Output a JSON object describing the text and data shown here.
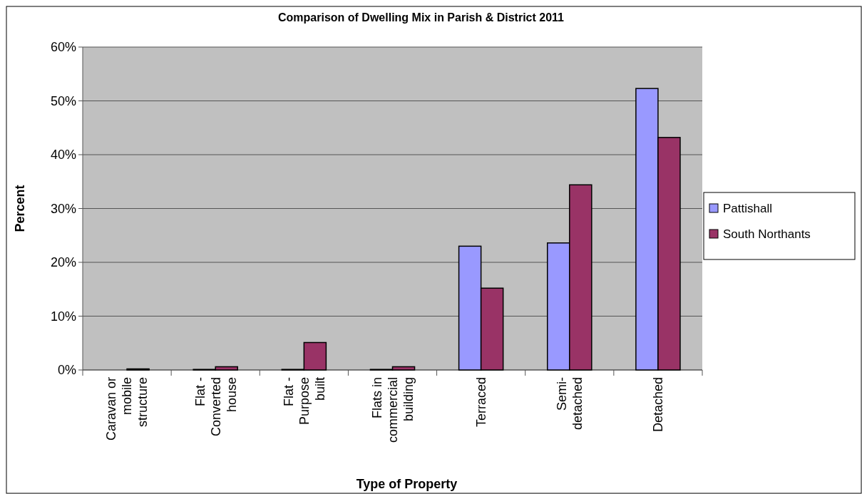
{
  "chart_data": {
    "type": "bar",
    "title": "Comparison of Dwelling Mix in Parish & District 2011",
    "xlabel": "Type of Property",
    "ylabel": "Percent",
    "categories": [
      "Caravan or mobile structure",
      "Flat - Converted house",
      "Flat - Purpose built",
      "Flats in commercial building",
      "Terraced",
      "Semi-detached",
      "Detached"
    ],
    "series": [
      {
        "name": "Pattishall",
        "color": "#9999ff",
        "values": [
          0,
          0.1,
          0.1,
          0.1,
          23.0,
          23.6,
          52.3
        ]
      },
      {
        "name": "South Northants",
        "color": "#993366",
        "values": [
          0.2,
          0.6,
          5.1,
          0.6,
          15.2,
          34.4,
          43.2
        ]
      }
    ],
    "ylim": [
      0,
      60
    ],
    "yticks": [
      {
        "value": 0,
        "label": "0%"
      },
      {
        "value": 10,
        "label": "10%"
      },
      {
        "value": 20,
        "label": "20%"
      },
      {
        "value": 30,
        "label": "30%"
      },
      {
        "value": 40,
        "label": "40%"
      },
      {
        "value": 50,
        "label": "50%"
      },
      {
        "value": 60,
        "label": "60%"
      }
    ],
    "grid": "y",
    "legend": "right"
  }
}
